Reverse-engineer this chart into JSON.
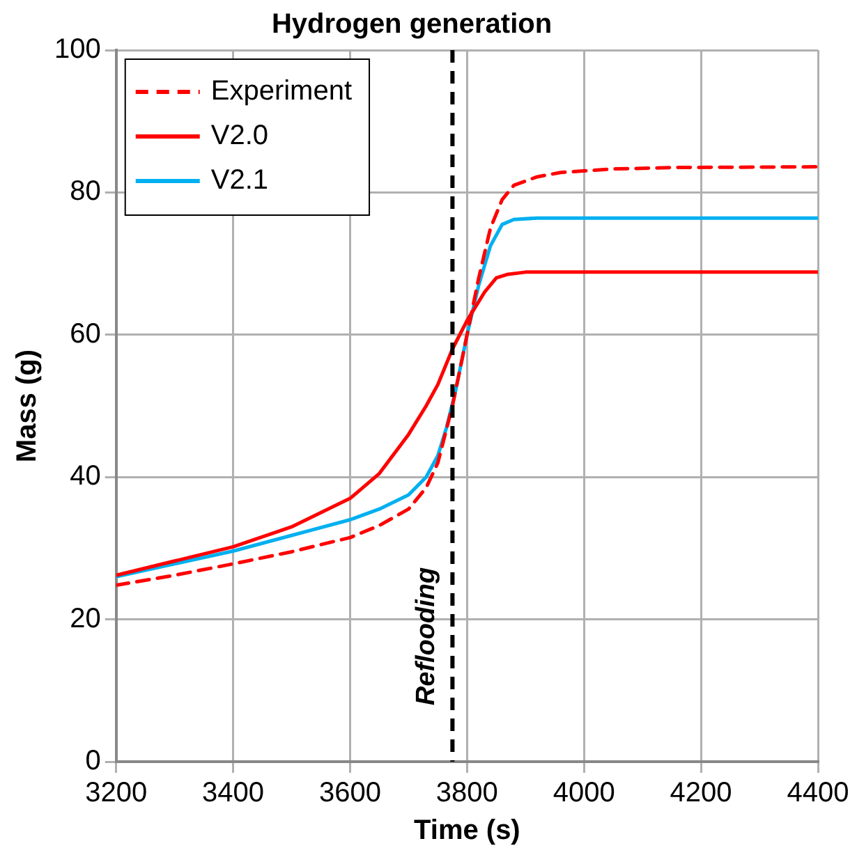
{
  "chart_data": {
    "type": "line",
    "title": "Hydrogen generation",
    "xlabel": "Time (s)",
    "ylabel": "Mass (g)",
    "xlim": [
      3200,
      4400
    ],
    "xticks": [
      3200,
      3400,
      3600,
      3800,
      4000,
      4200,
      4400
    ],
    "ylim": [
      0,
      100
    ],
    "yticks": [
      0,
      20,
      40,
      60,
      80,
      100
    ],
    "grid": true,
    "legend": "top left",
    "marker": "none",
    "series": [
      {
        "name": "Experiment",
        "color": "#ff0000",
        "line_style": "dashed",
        "x": [
          3200,
          3300,
          3400,
          3500,
          3600,
          3650,
          3700,
          3730,
          3750,
          3775,
          3800,
          3820,
          3840,
          3860,
          3880,
          3920,
          3960,
          4050,
          4150,
          4400
        ],
        "values": [
          24.8,
          26.2,
          27.8,
          29.5,
          31.5,
          33.2,
          35.5,
          38.5,
          42,
          50,
          60,
          68,
          75,
          79,
          81,
          82.2,
          82.8,
          83.3,
          83.5,
          83.6
        ]
      },
      {
        "name": "V2.0",
        "color": "#ff0000",
        "line_style": "solid",
        "x": [
          3200,
          3300,
          3400,
          3500,
          3600,
          3650,
          3700,
          3730,
          3750,
          3775,
          3800,
          3830,
          3850,
          3870,
          3900,
          4000,
          4400
        ],
        "values": [
          26.2,
          28.2,
          30.2,
          33,
          37,
          40.5,
          46,
          50,
          53,
          58,
          62,
          66,
          68,
          68.5,
          68.8,
          68.8,
          68.8
        ]
      },
      {
        "name": "V2.1",
        "color": "#00b0f0",
        "line_style": "solid",
        "x": [
          3200,
          3300,
          3400,
          3500,
          3600,
          3650,
          3700,
          3730,
          3750,
          3765,
          3780,
          3800,
          3820,
          3840,
          3860,
          3880,
          3920,
          4000,
          4400
        ],
        "values": [
          26,
          27.8,
          29.6,
          31.8,
          34,
          35.5,
          37.5,
          40,
          43,
          47,
          52,
          60,
          67,
          72.5,
          75.5,
          76.2,
          76.4,
          76.4,
          76.4
        ]
      }
    ],
    "ref_lines": [
      {
        "axis": "x",
        "value": 3775,
        "label": "Reflooding",
        "color": "#000000",
        "line_style": "dashed"
      }
    ]
  }
}
